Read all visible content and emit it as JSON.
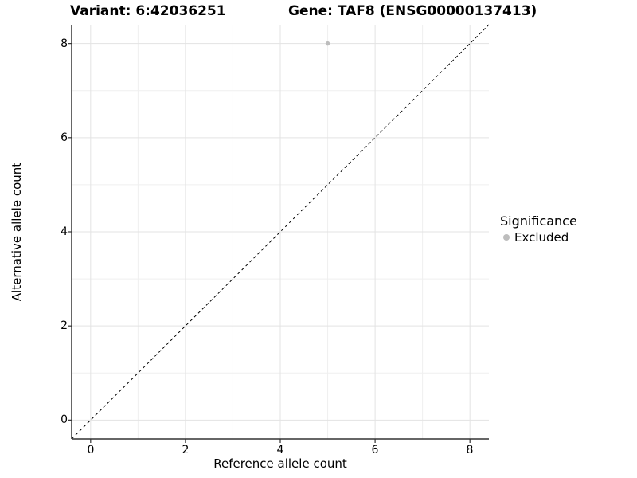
{
  "chart_data": {
    "type": "scatter",
    "titles": {
      "left": "Variant: 6:42036251",
      "right": "Gene: TAF8 (ENSG00000137413)"
    },
    "xlabel": "Reference allele count",
    "ylabel": "Alternative allele count",
    "xlim": [
      -0.4,
      8.4
    ],
    "ylim": [
      -0.4,
      8.4
    ],
    "x_ticks": [
      0,
      2,
      4,
      6,
      8
    ],
    "y_ticks": [
      0,
      2,
      4,
      6,
      8
    ],
    "minor_gridlines": [
      1,
      3,
      5,
      7
    ],
    "grid": true,
    "identity_line": {
      "style": "dashed",
      "color": "#000000",
      "from": [
        -0.4,
        -0.4
      ],
      "to": [
        8.4,
        8.4
      ]
    },
    "series": [
      {
        "name": "Excluded",
        "color": "#bdbdbd",
        "point_radius": 2.7,
        "points": [
          {
            "x": 5,
            "y": 8
          }
        ]
      }
    ],
    "legend": {
      "position": "right",
      "title": "Significance",
      "items": [
        {
          "label": "Excluded",
          "color": "#bdbdbd"
        }
      ]
    },
    "colors": {
      "major_grid": "#e3e3e3",
      "minor_grid": "#efefef",
      "axis_line": "#333333",
      "tick_mark": "#333333",
      "text": "#000000",
      "background": "#ffffff"
    }
  }
}
